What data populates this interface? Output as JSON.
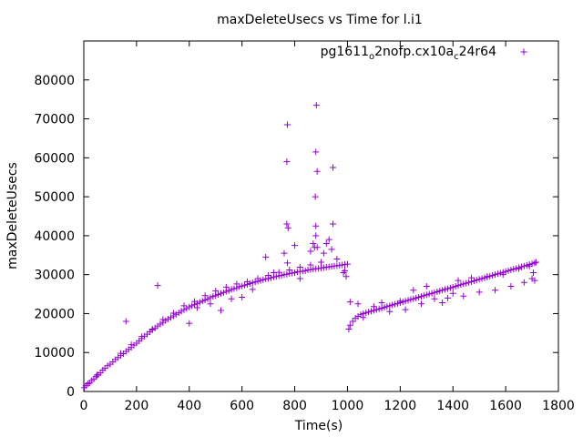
{
  "chart_data": {
    "type": "scatter",
    "title": "maxDeleteUsecs vs Time for l.i1",
    "xlabel": "Time(s)",
    "ylabel": "maxDeleteUsecs",
    "xlim": [
      0,
      1800
    ],
    "ylim": [
      0,
      90000
    ],
    "xticks": [
      0,
      200,
      400,
      600,
      800,
      1000,
      1200,
      1400,
      1600,
      1800
    ],
    "yticks": [
      0,
      10000,
      20000,
      30000,
      40000,
      50000,
      60000,
      70000,
      80000
    ],
    "x_tick_labels": [
      "0",
      "200",
      "400",
      "600",
      "800",
      "1000",
      "1200",
      "1400",
      "1600",
      "1800"
    ],
    "y_tick_labels": [
      "0",
      "10000",
      "20000",
      "30000",
      "40000",
      "50000",
      "60000",
      "70000",
      "80000"
    ],
    "grid": false,
    "legend_position": "top-right",
    "series": [
      {
        "name": "pg1611_o2nofp.cx10a_c24r64",
        "legend_main": "pg1611",
        "legend_sub1": "o",
        "legend_mid": "2nofp.cx10a",
        "legend_sub2": "c",
        "legend_tail": "24r64",
        "color": "#9400d3",
        "marker": "plus",
        "points": [
          [
            2,
            1000
          ],
          [
            8,
            1500
          ],
          [
            15,
            2000
          ],
          [
            22,
            2200
          ],
          [
            30,
            2800
          ],
          [
            38,
            3200
          ],
          [
            46,
            3800
          ],
          [
            55,
            4300
          ],
          [
            63,
            4800
          ],
          [
            72,
            5500
          ],
          [
            80,
            6000
          ],
          [
            90,
            6600
          ],
          [
            100,
            7000
          ],
          [
            110,
            7600
          ],
          [
            120,
            8200
          ],
          [
            130,
            8700
          ],
          [
            140,
            9200
          ],
          [
            150,
            9700
          ],
          [
            160,
            10300
          ],
          [
            170,
            10800
          ],
          [
            180,
            11300
          ],
          [
            190,
            11900
          ],
          [
            200,
            12400
          ],
          [
            210,
            13000
          ],
          [
            220,
            13600
          ],
          [
            230,
            14200
          ],
          [
            240,
            14700
          ],
          [
            250,
            15300
          ],
          [
            260,
            15800
          ],
          [
            270,
            16300
          ],
          [
            280,
            16800
          ],
          [
            290,
            17300
          ],
          [
            300,
            17700
          ],
          [
            310,
            18200
          ],
          [
            320,
            18600
          ],
          [
            330,
            19000
          ],
          [
            340,
            19400
          ],
          [
            350,
            19800
          ],
          [
            360,
            20200
          ],
          [
            370,
            20600
          ],
          [
            380,
            21000
          ],
          [
            390,
            21300
          ],
          [
            400,
            21700
          ],
          [
            410,
            22000
          ],
          [
            420,
            22300
          ],
          [
            430,
            22600
          ],
          [
            440,
            22900
          ],
          [
            450,
            23200
          ],
          [
            460,
            23500
          ],
          [
            470,
            23800
          ],
          [
            480,
            24100
          ],
          [
            490,
            24400
          ],
          [
            500,
            24600
          ],
          [
            510,
            24900
          ],
          [
            520,
            25200
          ],
          [
            530,
            25400
          ],
          [
            540,
            25700
          ],
          [
            550,
            25900
          ],
          [
            560,
            26200
          ],
          [
            570,
            26400
          ],
          [
            580,
            26600
          ],
          [
            590,
            26900
          ],
          [
            600,
            27100
          ],
          [
            610,
            27300
          ],
          [
            620,
            27500
          ],
          [
            630,
            27700
          ],
          [
            640,
            27900
          ],
          [
            650,
            28100
          ],
          [
            660,
            28300
          ],
          [
            670,
            28500
          ],
          [
            680,
            28700
          ],
          [
            690,
            28900
          ],
          [
            700,
            29000
          ],
          [
            710,
            29200
          ],
          [
            720,
            29400
          ],
          [
            730,
            29500
          ],
          [
            740,
            29700
          ],
          [
            750,
            29800
          ],
          [
            760,
            30000
          ],
          [
            770,
            30100
          ],
          [
            780,
            30300
          ],
          [
            790,
            30400
          ],
          [
            800,
            30500
          ],
          [
            810,
            30700
          ],
          [
            820,
            30800
          ],
          [
            830,
            30900
          ],
          [
            840,
            31000
          ],
          [
            850,
            31200
          ],
          [
            860,
            31300
          ],
          [
            870,
            31400
          ],
          [
            880,
            31500
          ],
          [
            890,
            31600
          ],
          [
            900,
            31700
          ],
          [
            910,
            31800
          ],
          [
            920,
            31900
          ],
          [
            930,
            32000
          ],
          [
            940,
            32100
          ],
          [
            950,
            32200
          ],
          [
            960,
            32300
          ],
          [
            970,
            32400
          ],
          [
            980,
            32500
          ],
          [
            990,
            32600
          ],
          [
            1000,
            32700
          ],
          [
            140,
            9800
          ],
          [
            180,
            12000
          ],
          [
            220,
            14100
          ],
          [
            260,
            16000
          ],
          [
            300,
            18500
          ],
          [
            340,
            20100
          ],
          [
            380,
            22000
          ],
          [
            420,
            23100
          ],
          [
            460,
            24600
          ],
          [
            500,
            25800
          ],
          [
            540,
            26800
          ],
          [
            580,
            27600
          ],
          [
            620,
            28200
          ],
          [
            660,
            29000
          ],
          [
            700,
            29800
          ],
          [
            740,
            30600
          ],
          [
            780,
            31200
          ],
          [
            820,
            31900
          ],
          [
            860,
            32500
          ],
          [
            900,
            33200
          ],
          [
            50,
            4200
          ],
          [
            160,
            18000
          ],
          [
            280,
            27200
          ],
          [
            400,
            17500
          ],
          [
            430,
            21500
          ],
          [
            480,
            22500
          ],
          [
            520,
            20800
          ],
          [
            560,
            23800
          ],
          [
            600,
            24200
          ],
          [
            640,
            26200
          ],
          [
            690,
            34500
          ],
          [
            720,
            30500
          ],
          [
            760,
            35500
          ],
          [
            770,
            43000
          ],
          [
            772,
            33000
          ],
          [
            775,
            42000
          ],
          [
            770,
            59000
          ],
          [
            772,
            68500
          ],
          [
            800,
            37500
          ],
          [
            820,
            29000
          ],
          [
            860,
            36000
          ],
          [
            870,
            38000
          ],
          [
            875,
            37000
          ],
          [
            878,
            50000
          ],
          [
            880,
            61500
          ],
          [
            882,
            73500
          ],
          [
            885,
            56500
          ],
          [
            880,
            42500
          ],
          [
            880,
            40000
          ],
          [
            885,
            37000
          ],
          [
            910,
            35500
          ],
          [
            920,
            38000
          ],
          [
            930,
            39000
          ],
          [
            940,
            36500
          ],
          [
            945,
            43000
          ],
          [
            945,
            57500
          ],
          [
            960,
            34000
          ],
          [
            985,
            30500
          ],
          [
            990,
            31000
          ],
          [
            995,
            29500
          ],
          [
            1005,
            16000
          ],
          [
            1010,
            17000
          ],
          [
            1020,
            18000
          ],
          [
            1030,
            18800
          ],
          [
            1040,
            19300
          ],
          [
            1050,
            19700
          ],
          [
            1060,
            20000
          ],
          [
            1070,
            20200
          ],
          [
            1080,
            20400
          ],
          [
            1090,
            20600
          ],
          [
            1100,
            20800
          ],
          [
            1110,
            21000
          ],
          [
            1120,
            21200
          ],
          [
            1130,
            21400
          ],
          [
            1140,
            21600
          ],
          [
            1150,
            21800
          ],
          [
            1160,
            22000
          ],
          [
            1170,
            22200
          ],
          [
            1180,
            22400
          ],
          [
            1190,
            22600
          ],
          [
            1200,
            22800
          ],
          [
            1210,
            23000
          ],
          [
            1220,
            23200
          ],
          [
            1230,
            23400
          ],
          [
            1240,
            23600
          ],
          [
            1250,
            23800
          ],
          [
            1260,
            24000
          ],
          [
            1270,
            24200
          ],
          [
            1280,
            24400
          ],
          [
            1290,
            24600
          ],
          [
            1300,
            24800
          ],
          [
            1310,
            25000
          ],
          [
            1320,
            25200
          ],
          [
            1330,
            25400
          ],
          [
            1340,
            25600
          ],
          [
            1350,
            25800
          ],
          [
            1360,
            26000
          ],
          [
            1370,
            26200
          ],
          [
            1380,
            26400
          ],
          [
            1390,
            26600
          ],
          [
            1400,
            26800
          ],
          [
            1410,
            27000
          ],
          [
            1420,
            27200
          ],
          [
            1430,
            27400
          ],
          [
            1440,
            27600
          ],
          [
            1450,
            27800
          ],
          [
            1460,
            28000
          ],
          [
            1470,
            28200
          ],
          [
            1480,
            28400
          ],
          [
            1490,
            28600
          ],
          [
            1500,
            28800
          ],
          [
            1510,
            29000
          ],
          [
            1520,
            29200
          ],
          [
            1530,
            29400
          ],
          [
            1540,
            29600
          ],
          [
            1550,
            29800
          ],
          [
            1560,
            30000
          ],
          [
            1570,
            30200
          ],
          [
            1580,
            30400
          ],
          [
            1590,
            30600
          ],
          [
            1600,
            30800
          ],
          [
            1610,
            31000
          ],
          [
            1620,
            31200
          ],
          [
            1630,
            31400
          ],
          [
            1640,
            31600
          ],
          [
            1650,
            31800
          ],
          [
            1660,
            32000
          ],
          [
            1670,
            32200
          ],
          [
            1680,
            32400
          ],
          [
            1690,
            32600
          ],
          [
            1700,
            32800
          ],
          [
            1710,
            33000
          ],
          [
            1715,
            33200
          ],
          [
            1010,
            23000
          ],
          [
            1040,
            22500
          ],
          [
            1060,
            19000
          ],
          [
            1100,
            21800
          ],
          [
            1130,
            22800
          ],
          [
            1160,
            20500
          ],
          [
            1200,
            23200
          ],
          [
            1220,
            21000
          ],
          [
            1250,
            26000
          ],
          [
            1280,
            22500
          ],
          [
            1300,
            27000
          ],
          [
            1330,
            23800
          ],
          [
            1360,
            22800
          ],
          [
            1380,
            24000
          ],
          [
            1400,
            25200
          ],
          [
            1420,
            28500
          ],
          [
            1440,
            24500
          ],
          [
            1470,
            29200
          ],
          [
            1500,
            25500
          ],
          [
            1530,
            29500
          ],
          [
            1560,
            26000
          ],
          [
            1590,
            30000
          ],
          [
            1620,
            27000
          ],
          [
            1650,
            31500
          ],
          [
            1670,
            28000
          ],
          [
            1690,
            32200
          ],
          [
            1700,
            29000
          ],
          [
            1705,
            30500
          ],
          [
            1710,
            28500
          ]
        ]
      }
    ]
  }
}
